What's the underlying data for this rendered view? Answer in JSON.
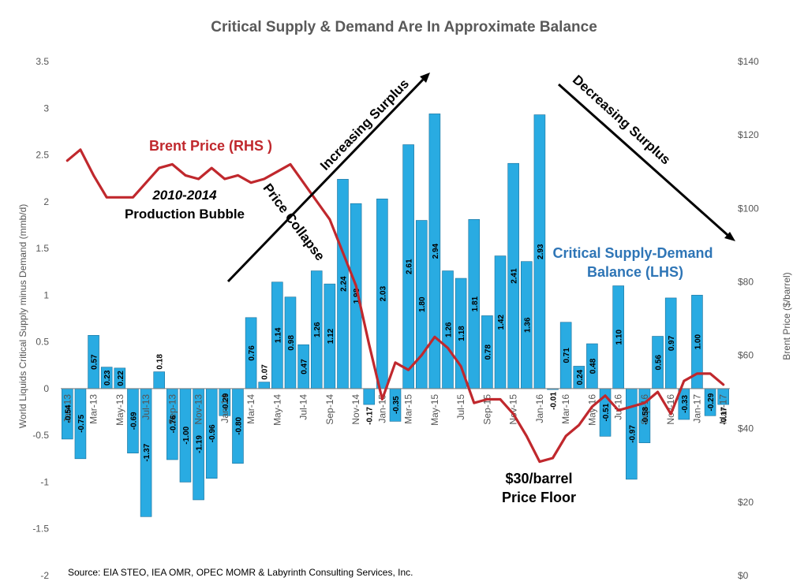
{
  "chart_data": {
    "type": "bar",
    "title": "Critical Supply & Demand Are In Approximate Balance",
    "ylabel": "World Liquids Critical Supply minus Demand (mmb/d)",
    "y2label": "Brent Price ($/barrel)",
    "ylim": [
      -2,
      3.5
    ],
    "y_ticks": [
      "3.5",
      "3",
      "2.5",
      "2",
      "1.5",
      "1",
      "0.5",
      "0",
      "-0.5",
      "-1",
      "-1.5",
      "-2"
    ],
    "y2lim": [
      0,
      140
    ],
    "y2_ticks": [
      "$140",
      "$120",
      "$100",
      "$80",
      "$60",
      "$40",
      "$20",
      "$0"
    ],
    "grid": false,
    "categories": [
      "Jan-13",
      "Feb-13",
      "Mar-13",
      "Apr-13",
      "May-13",
      "Jun-13",
      "Jul-13",
      "Aug-13",
      "Sep-13",
      "Oct-13",
      "Nov-13",
      "Dec-13",
      "Jan-14",
      "Feb-14",
      "Mar-14",
      "Apr-14",
      "May-14",
      "Jun-14",
      "Jul-14",
      "Aug-14",
      "Sep-14",
      "Oct-14",
      "Nov-14",
      "Dec-14",
      "Jan-15",
      "Feb-15",
      "Mar-15",
      "Apr-15",
      "May-15",
      "Jun-15",
      "Jul-15",
      "Aug-15",
      "Sep-15",
      "Oct-15",
      "Nov-15",
      "Dec-15",
      "Jan-16",
      "Feb-16",
      "Mar-16",
      "Apr-16",
      "May-16",
      "Jun-16",
      "Jul-16",
      "Aug-16",
      "Sep-16",
      "Oct-16",
      "Nov-16",
      "Dec-16",
      "Jan-17",
      "Feb-17",
      "Mar-17"
    ],
    "x_tick_labels": [
      "Jan-13",
      "Mar-13",
      "May-13",
      "Jul-13",
      "Sep-13",
      "Nov-13",
      "Jan-14",
      "Mar-14",
      "May-14",
      "Jul-14",
      "Sep-14",
      "Nov-14",
      "Jan-15",
      "Mar-15",
      "May-15",
      "Jul-15",
      "Sep-15",
      "Nov-15",
      "Jan-16",
      "Mar-16",
      "May-16",
      "Jul-16",
      "Sep-16",
      "Nov-16",
      "Jan-17",
      "Mar-17"
    ],
    "series": [
      {
        "name": "Critical Supply-Demand Balance (LHS)",
        "type": "bar",
        "color": "#29abe2",
        "values": [
          -0.54,
          -0.75,
          0.57,
          0.23,
          0.22,
          -0.69,
          -1.37,
          0.18,
          -0.76,
          -1.0,
          -1.19,
          -0.96,
          -0.29,
          -0.8,
          0.76,
          0.07,
          1.14,
          0.98,
          0.47,
          1.26,
          1.12,
          2.24,
          1.98,
          -0.17,
          2.03,
          -0.35,
          2.61,
          1.8,
          2.94,
          1.26,
          1.18,
          1.81,
          0.78,
          1.42,
          2.41,
          1.36,
          2.93,
          -0.01,
          0.71,
          0.24,
          0.48,
          -0.51,
          1.1,
          -0.97,
          -0.58,
          0.56,
          0.97,
          -0.33,
          1.0,
          -0.29,
          -0.17
        ],
        "labels": [
          "-0.54",
          "-0.75",
          "0.57",
          "0.23",
          "0.22",
          "-0.69",
          "-1.37",
          "0.18",
          "-0.76",
          "-1.00",
          "-1.19",
          "-0.96",
          "-0.29",
          "-0.80",
          "0.76",
          "0.07",
          "1.14",
          "0.98",
          "0.47",
          "1.26",
          "1.12",
          "2.24",
          "1.98",
          "-0.17",
          "2.03",
          "-0.35",
          "2.61",
          "1.80",
          "2.94",
          "1.26",
          "1.18",
          "1.81",
          "0.78",
          "1.42",
          "2.41",
          "1.36",
          "2.93",
          "-0.01",
          "0.71",
          "0.24",
          "0.48",
          "-0.51",
          "1.10",
          "-0.97",
          "-0.58",
          "0.56",
          "0.97",
          "-0.33",
          "1.00",
          "-0.29",
          "-0.17"
        ]
      },
      {
        "name": "Brent Price (RHS )",
        "type": "line",
        "axis": "right",
        "color": "#c0282d",
        "values": [
          113,
          116,
          109,
          103,
          103,
          103,
          107,
          111,
          112,
          109,
          108,
          111,
          108,
          109,
          107,
          108,
          110,
          112,
          107,
          102,
          97,
          88,
          79,
          63,
          48,
          58,
          56,
          60,
          65,
          62,
          57,
          47,
          48,
          48,
          44,
          38,
          31,
          32,
          38,
          41,
          46,
          49,
          45,
          46,
          47,
          50,
          44,
          53,
          55,
          55,
          52
        ]
      }
    ],
    "annotations": {
      "price_collapse": "Price Collapse",
      "increasing_surplus": "Increasing Surplus",
      "decreasing_surplus": "Decreasing Surplus",
      "bubble_years": "2010-2014",
      "bubble_label": "Production Bubble",
      "price_floor_1": "$30/barrel",
      "price_floor_2": "Price Floor",
      "balance_1": "Critical Supply-Demand",
      "balance_2": "Balance (LHS)"
    },
    "source": "Source:  EIA STEO, IEA OMR, OPEC MOMR & Labyrinth Consulting Services, Inc."
  }
}
